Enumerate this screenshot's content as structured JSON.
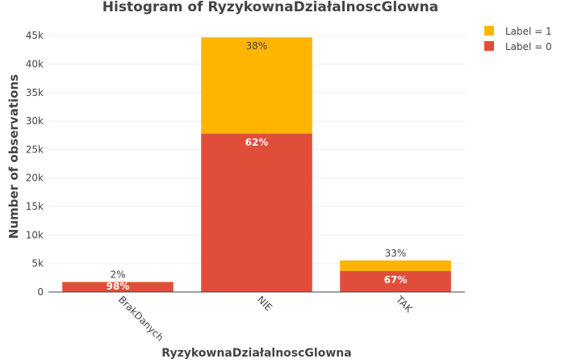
{
  "chart_data": {
    "type": "bar",
    "stacked": true,
    "title": "Histogram of RyzykownaDziałalnoscGlowna",
    "xlabel": "RyzykownaDziałalnoscGlowna",
    "ylabel": "Number of observations",
    "categories": [
      "BrakDanych",
      "NIE",
      "TAK"
    ],
    "ylim": [
      0,
      47000
    ],
    "yticks": [
      0,
      5000,
      10000,
      15000,
      20000,
      25000,
      30000,
      35000,
      40000,
      45000
    ],
    "ytick_labels": [
      "0",
      "5k",
      "10k",
      "15k",
      "20k",
      "25k",
      "30k",
      "35k",
      "40k",
      "45k"
    ],
    "grid": true,
    "legend_position": "top-right",
    "series": [
      {
        "name": "Label = 0",
        "color": "#e04e39",
        "values": [
          1750,
          27800,
          3700
        ],
        "labels": [
          "98%",
          "62%",
          "67%"
        ]
      },
      {
        "name": "Label = 1",
        "color": "#ffb400",
        "values": [
          40,
          16900,
          1850
        ],
        "labels": [
          "2%",
          "38%",
          "33%"
        ]
      }
    ],
    "legend_order": [
      1,
      0
    ]
  }
}
